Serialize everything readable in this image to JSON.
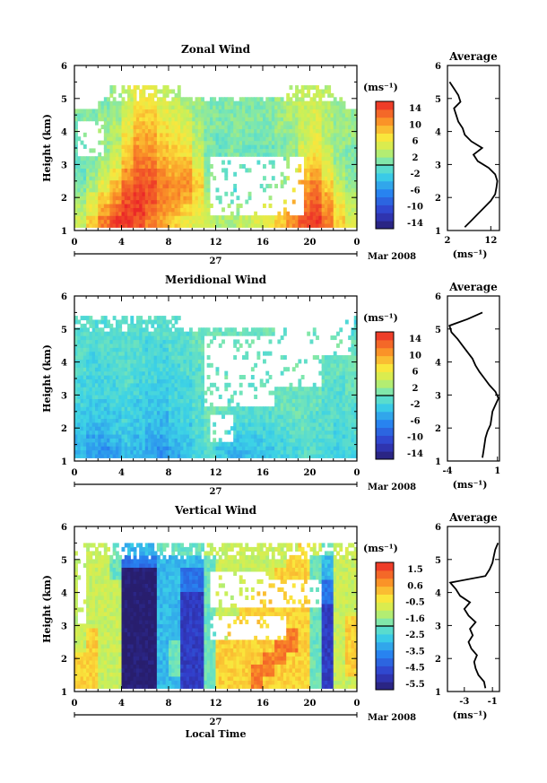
{
  "common": {
    "date_label": "Mar 2008",
    "day_label": "27",
    "unit_label": "(ms⁻¹)",
    "xlabel": "Local Time",
    "ylabel": "Height (km)",
    "avg_title": "Average",
    "time_ticks": [
      "0",
      "4",
      "8",
      "12",
      "16",
      "20",
      "0"
    ],
    "height_ticks": [
      "1",
      "2",
      "3",
      "4",
      "5",
      "6"
    ]
  },
  "chart_data": [
    {
      "type": "heatmap",
      "title": "Zonal Wind",
      "xlabel": "",
      "ylabel": "Height (km)",
      "x_range_hours": [
        0,
        24
      ],
      "y_range_km": [
        1,
        6
      ],
      "data_top_km": 5.4,
      "colorbar": {
        "ticks": [
          "14",
          "10",
          "6",
          "2",
          "-2",
          "-6",
          "-10",
          "-14"
        ],
        "range": [
          -16,
          16
        ],
        "unit": "(ms⁻¹)"
      },
      "profile": {
        "title": "Average",
        "xticks": [
          "2",
          "12"
        ],
        "xlim": [
          2,
          14
        ],
        "xlabel": "(ms⁻¹)",
        "height_km": [
          1.1,
          1.3,
          1.5,
          1.7,
          1.9,
          2.1,
          2.3,
          2.5,
          2.7,
          2.9,
          3.1,
          3.3,
          3.5,
          3.7,
          3.9,
          4.1,
          4.3,
          4.5,
          4.7,
          4.9,
          5.1,
          5.3,
          5.5
        ],
        "value": [
          6,
          7.5,
          9,
          10.5,
          12,
          13,
          13.3,
          13.5,
          13,
          11.5,
          9,
          8,
          10,
          7.5,
          6,
          5.5,
          4.5,
          4,
          3.5,
          5,
          4.5,
          3.5,
          2.5
        ]
      },
      "field": [
        [
          4,
          8,
          12,
          15,
          15,
          14,
          12,
          10,
          8,
          6,
          5,
          4,
          3,
          3,
          4,
          5,
          6,
          8,
          11,
          14,
          15,
          12,
          8,
          5
        ],
        [
          3,
          6,
          10,
          13,
          15,
          15,
          13,
          11,
          10,
          8,
          6,
          4,
          3,
          2,
          3,
          4,
          6,
          8,
          11,
          13,
          14,
          11,
          7,
          4
        ],
        [
          2,
          5,
          8,
          11,
          14,
          15,
          14,
          12,
          11,
          10,
          7,
          3,
          1,
          0,
          1,
          2,
          3,
          5,
          9,
          12,
          13,
          10,
          6,
          3
        ],
        [
          1,
          3,
          6,
          9,
          13,
          14,
          14,
          12,
          11,
          11,
          8,
          2,
          0,
          -1,
          0,
          0,
          1,
          2,
          6,
          10,
          12,
          8,
          4,
          2
        ],
        [
          0,
          2,
          4,
          7,
          11,
          13,
          13,
          11,
          10,
          11,
          7,
          1,
          -1,
          -1,
          0,
          0,
          0,
          1,
          4,
          8,
          10,
          6,
          3,
          1
        ],
        [
          0,
          1,
          3,
          5,
          9,
          12,
          12,
          10,
          9,
          9,
          5,
          1,
          0,
          0,
          0,
          0,
          0,
          1,
          3,
          7,
          8,
          5,
          2,
          1
        ],
        [
          0,
          1,
          2,
          4,
          8,
          11,
          11,
          9,
          8,
          7,
          4,
          1,
          0,
          1,
          0,
          0,
          0,
          1,
          2,
          5,
          7,
          4,
          2,
          1
        ],
        [
          1,
          1,
          2,
          3,
          7,
          10,
          10,
          8,
          7,
          6,
          3,
          1,
          0,
          1,
          1,
          0,
          1,
          1,
          2,
          4,
          6,
          3,
          2,
          2
        ],
        [
          1,
          1,
          2,
          3,
          6,
          9,
          9,
          7,
          6,
          5,
          3,
          1,
          1,
          1,
          1,
          1,
          1,
          2,
          2,
          4,
          5,
          3,
          2,
          2
        ],
        [
          1,
          1,
          2,
          2,
          5,
          8,
          8,
          6,
          5,
          4,
          2,
          1,
          1,
          1,
          1,
          1,
          1,
          2,
          3,
          4,
          5,
          3,
          2,
          2
        ],
        [
          null,
          null,
          1,
          2,
          4,
          7,
          7,
          5,
          4,
          3,
          2,
          1,
          1,
          1,
          1,
          1,
          1,
          2,
          3,
          4,
          4,
          3,
          2,
          null
        ],
        [
          null,
          null,
          null,
          2,
          4,
          6,
          6,
          4,
          3,
          null,
          null,
          null,
          null,
          null,
          null,
          null,
          null,
          null,
          3,
          4,
          4,
          3,
          null,
          null
        ]
      ],
      "mask_rects": [
        [
          11.5,
          15.5,
          1.5,
          3.2
        ],
        [
          14.5,
          19.5,
          1.5,
          3.2
        ],
        [
          0.2,
          2.5,
          3.2,
          4.3
        ]
      ]
    },
    {
      "type": "heatmap",
      "title": "Meridional Wind",
      "xlabel": "",
      "ylabel": "Height (km)",
      "x_range_hours": [
        0,
        24
      ],
      "y_range_km": [
        1,
        6
      ],
      "data_top_km": 5.4,
      "colorbar": {
        "ticks": [
          "14",
          "10",
          "6",
          "2",
          "-2",
          "-6",
          "-10",
          "-14"
        ],
        "range": [
          -16,
          16
        ],
        "unit": "(ms⁻¹)"
      },
      "profile": {
        "title": "Average",
        "xticks": [
          "-4",
          "1"
        ],
        "xlim": [
          -4,
          1.2
        ],
        "xlabel": "(ms⁻¹)",
        "height_km": [
          1.1,
          1.3,
          1.5,
          1.7,
          1.9,
          2.1,
          2.3,
          2.5,
          2.7,
          2.9,
          3.1,
          3.3,
          3.5,
          3.7,
          3.9,
          4.1,
          4.3,
          4.5,
          4.7,
          4.9,
          5.1,
          5.3,
          5.5
        ],
        "value": [
          -0.5,
          -0.4,
          -0.3,
          -0.2,
          0,
          0.3,
          0.4,
          0.5,
          0.8,
          1.1,
          0.8,
          0.2,
          -0.3,
          -0.8,
          -1.2,
          -1.5,
          -2.0,
          -2.5,
          -3.0,
          -3.6,
          -3.8,
          -2.0,
          -0.5
        ]
      },
      "field": [
        [
          -4,
          -5,
          -6,
          -5,
          -4,
          -4,
          -5,
          -6,
          -5,
          -3,
          -2,
          -1,
          -3,
          -4,
          -4,
          -3,
          -3,
          -2,
          -2,
          -1,
          -1,
          -2,
          -3,
          -2
        ],
        [
          -4,
          -5,
          -5,
          -4,
          -3,
          -4,
          -5,
          -5,
          -4,
          -3,
          -2,
          0,
          -2,
          -3,
          -3,
          -3,
          -2,
          -2,
          -1,
          -1,
          -1,
          -1,
          -2,
          -2
        ],
        [
          -3,
          -4,
          -4,
          -3,
          -3,
          -3,
          -4,
          -4,
          -3,
          -3,
          -1,
          0,
          -1,
          -2,
          -2,
          -2,
          -2,
          -1,
          -1,
          0,
          -1,
          -1,
          -2,
          -1
        ],
        [
          -3,
          -3,
          -3,
          -3,
          -2,
          -3,
          -3,
          -4,
          -3,
          -2,
          -1,
          0,
          -1,
          -1,
          -1,
          -1,
          -1,
          -1,
          0,
          0,
          -1,
          -1,
          -1,
          -1
        ],
        [
          -2,
          -3,
          -3,
          -2,
          -2,
          -3,
          -3,
          -3,
          -2,
          -2,
          -1,
          0,
          0,
          -1,
          -1,
          -1,
          -1,
          0,
          0,
          0,
          0,
          -1,
          -1,
          -1
        ],
        [
          -2,
          -2,
          -2,
          -2,
          -2,
          -2,
          -3,
          -3,
          -2,
          -2,
          -1,
          0,
          0,
          0,
          -1,
          -1,
          0,
          0,
          0,
          0,
          0,
          -1,
          -1,
          0
        ],
        [
          -2,
          -2,
          -2,
          -2,
          -1,
          -2,
          -2,
          -3,
          -2,
          -2,
          -1,
          0,
          0,
          0,
          0,
          0,
          0,
          0,
          0,
          0,
          0,
          0,
          -1,
          0
        ],
        [
          -1,
          -2,
          -2,
          -1,
          -1,
          -2,
          -2,
          -2,
          -2,
          -1,
          -1,
          0,
          0,
          0,
          0,
          0,
          0,
          0,
          0,
          0,
          0,
          0,
          0,
          0
        ],
        [
          -1,
          -2,
          -1,
          -1,
          -1,
          -1,
          -2,
          -2,
          -1,
          -1,
          0,
          0,
          0,
          0,
          0,
          0,
          0,
          0,
          0,
          0,
          0,
          0,
          0,
          0
        ],
        [
          -1,
          -1,
          -1,
          -1,
          -1,
          -1,
          -2,
          -2,
          -1,
          -1,
          0,
          0,
          0,
          0,
          0,
          0,
          0,
          0,
          0,
          0,
          0,
          0,
          0,
          0
        ],
        [
          -1,
          -1,
          -1,
          -1,
          -1,
          -1,
          -1,
          -1,
          -1,
          -1,
          0,
          0,
          0,
          0,
          0,
          0,
          0,
          0,
          0,
          0,
          0,
          0,
          0,
          -1
        ],
        [
          -1,
          -1,
          -1,
          -1,
          -1,
          -1,
          -1,
          -1,
          -1,
          null,
          null,
          null,
          null,
          null,
          null,
          null,
          null,
          null,
          null,
          null,
          null,
          null,
          null,
          -2
        ]
      ],
      "mask_rects": [
        [
          11,
          17,
          2.6,
          4.8
        ],
        [
          17,
          21,
          3.3,
          5.3
        ],
        [
          11.5,
          13.5,
          1.6,
          2.4
        ],
        [
          19.5,
          23.5,
          4.2,
          5.4
        ]
      ]
    },
    {
      "type": "heatmap",
      "title": "Vertical Wind",
      "xlabel": "Local Time",
      "ylabel": "Height (km)",
      "x_range_hours": [
        0,
        24
      ],
      "y_range_km": [
        1,
        6
      ],
      "data_top_km": 5.5,
      "colorbar": {
        "ticks": [
          "1.5",
          "0.6",
          "-0.5",
          "-1.6",
          "-2.5",
          "-3.5",
          "-4.5",
          "-5.5"
        ],
        "range": [
          -6,
          2
        ],
        "unit": "(ms⁻¹)"
      },
      "profile": {
        "title": "Average",
        "xticks": [
          "-3",
          "-1"
        ],
        "xlim": [
          -4.2,
          -0.5
        ],
        "xlabel": "(ms⁻¹)",
        "height_km": [
          1.1,
          1.3,
          1.5,
          1.7,
          1.9,
          2.1,
          2.3,
          2.5,
          2.7,
          2.9,
          3.1,
          3.3,
          3.5,
          3.7,
          3.9,
          4.1,
          4.3,
          4.5,
          4.7,
          4.9,
          5.1,
          5.3,
          5.5
        ],
        "value": [
          -1.5,
          -1.6,
          -2.0,
          -2.2,
          -2.3,
          -2.1,
          -2.5,
          -2.7,
          -2.4,
          -2.6,
          -2.2,
          -2.7,
          -3.0,
          -2.6,
          -3.3,
          -3.6,
          -4.0,
          -1.5,
          -1.2,
          -1.0,
          -0.9,
          -0.8,
          -0.6
        ]
      },
      "field": [
        [
          0,
          0,
          -1,
          -1,
          -6,
          -6,
          -6,
          -3,
          -3,
          -5,
          -5,
          -2,
          0,
          0,
          0,
          1,
          0,
          0,
          0,
          0,
          -2,
          -5,
          -1,
          -1
        ],
        [
          0,
          0,
          -1,
          -1,
          -6,
          -6,
          -6,
          -3,
          -2,
          -5,
          -5,
          -2,
          0,
          0,
          0,
          1,
          1,
          0,
          0,
          0,
          -2,
          -5,
          -1,
          0
        ],
        [
          0,
          0,
          -1,
          -1,
          -6,
          -6,
          -6,
          -3,
          -2,
          -5,
          -5,
          -2,
          0,
          0,
          0,
          0,
          1,
          1,
          0,
          0,
          -2,
          -5,
          -1,
          0
        ],
        [
          -1,
          0,
          -1,
          -1,
          -6,
          -6,
          -6,
          -3,
          -2,
          -5,
          -5,
          -2,
          0,
          0,
          0,
          0,
          0,
          1,
          1,
          0,
          -2,
          -5,
          -1,
          0
        ],
        [
          -1,
          0,
          -1,
          -1,
          -6,
          -6,
          -6,
          -3,
          -3,
          -5,
          -5,
          -2,
          -1,
          0,
          0,
          0,
          0,
          0,
          1,
          0,
          -2,
          -5,
          -1,
          0
        ],
        [
          -1,
          -1,
          -1,
          -1,
          -6,
          -6,
          -6,
          -3,
          -3,
          -5,
          -5,
          -2,
          -1,
          0,
          0,
          0,
          0,
          0,
          0,
          0,
          -2,
          -5,
          -1,
          0
        ],
        [
          -1,
          -1,
          -1,
          -1,
          -6,
          -6,
          -6,
          -3,
          -3,
          -5,
          -5,
          -2,
          -1,
          -1,
          0,
          0,
          0,
          0,
          0,
          0,
          -2,
          -5,
          -1,
          -1
        ],
        [
          -1,
          -1,
          -1,
          -1,
          -6,
          -6,
          -6,
          -3,
          -3,
          -5,
          -5,
          -2,
          -1,
          -1,
          -1,
          0,
          0,
          0,
          0,
          0,
          -2,
          -4,
          -1,
          -1
        ],
        [
          -1,
          -1,
          -1,
          -1,
          -6,
          -6,
          -6,
          -3,
          -3,
          -4,
          -4,
          -2,
          -1,
          -1,
          -1,
          -1,
          0,
          0,
          0,
          0,
          -2,
          -4,
          -1,
          -1
        ],
        [
          -1,
          -1,
          -1,
          -2,
          -6,
          -6,
          -6,
          -3,
          -3,
          -4,
          -4,
          -2,
          -1,
          -1,
          -1,
          -1,
          -1,
          0,
          0,
          0,
          -2,
          -3,
          -1,
          -1
        ],
        [
          -1,
          -1,
          -1,
          -2,
          -4,
          -4,
          -4,
          -3,
          -3,
          -3,
          -3,
          -2,
          -1,
          -1,
          -1,
          -1,
          -1,
          -1,
          0,
          0,
          -2,
          -3,
          -1,
          -1
        ],
        [
          -1,
          -1,
          -1,
          -2,
          -3,
          -3,
          -3,
          -2,
          -2,
          -2,
          -2,
          -1,
          -1,
          -1,
          -1,
          -1,
          -1,
          -1,
          -1,
          0,
          -1,
          -2,
          -1,
          -1
        ]
      ],
      "mask_rects": [
        [
          11.5,
          16.5,
          3.6,
          4.7
        ],
        [
          16.5,
          21,
          3.6,
          4.4
        ],
        [
          11.5,
          18,
          2.6,
          3.3
        ],
        [
          0.2,
          1.0,
          3.0,
          5.5
        ]
      ]
    }
  ]
}
